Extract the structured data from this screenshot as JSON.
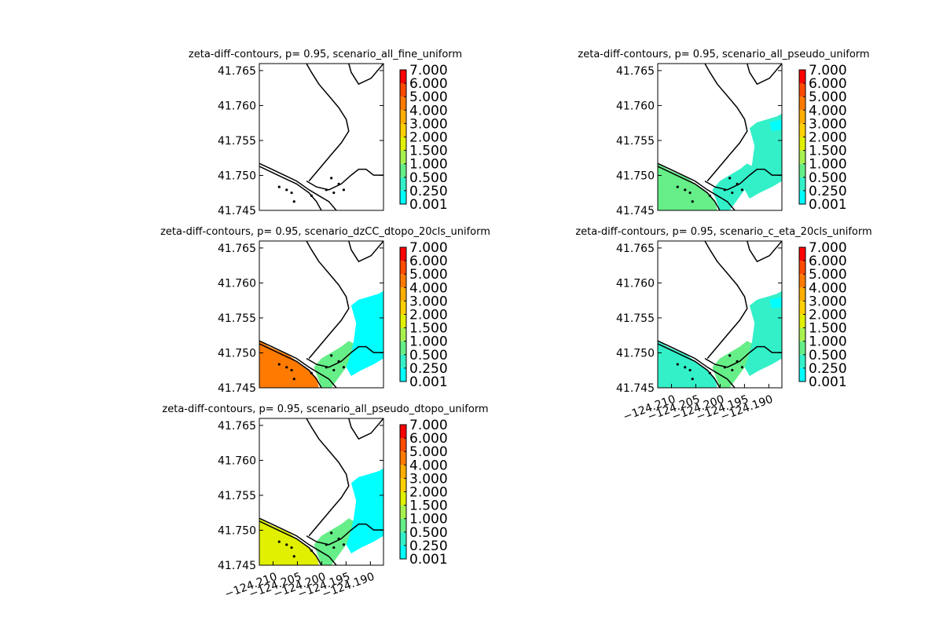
{
  "chart_data": [
    {
      "type": "heatmap",
      "title": "zeta-diff-contours, p= 0.95, scenario_all_fine_uniform",
      "xlabel": "",
      "ylabel": "",
      "ylim": [
        41.745,
        41.766
      ],
      "y_ticks": [
        "41.745",
        "41.750",
        "41.755",
        "41.760",
        "41.765"
      ],
      "x_ticks": [],
      "colorbar_levels": [
        "0.001",
        "0.250",
        "0.500",
        "1.000",
        "1.500",
        "2.000",
        "3.000",
        "4.000",
        "5.000",
        "6.000",
        "7.000"
      ],
      "fill": {
        "nearshore": "none",
        "river": "none",
        "upper": "none"
      }
    },
    {
      "type": "heatmap",
      "title": "zeta-diff-contours, p= 0.95, scenario_all_pseudo_uniform",
      "xlabel": "",
      "ylabel": "",
      "ylim": [
        41.745,
        41.766
      ],
      "y_ticks": [
        "41.745",
        "41.750",
        "41.755",
        "41.760",
        "41.765"
      ],
      "x_ticks": [],
      "colorbar_levels": [
        "0.001",
        "0.250",
        "0.500",
        "1.000",
        "1.500",
        "2.000",
        "3.000",
        "4.000",
        "5.000",
        "6.000",
        "7.000"
      ],
      "fill": {
        "nearshore": "0.500-1.000",
        "river": "0.250-0.500",
        "upper": "0.250-0.500"
      }
    },
    {
      "type": "heatmap",
      "title": "zeta-diff-contours, p= 0.95, scenario_dzCC_dtopo_20cls_uniform",
      "xlabel": "",
      "ylabel": "",
      "ylim": [
        41.745,
        41.766
      ],
      "y_ticks": [
        "41.745",
        "41.750",
        "41.755",
        "41.760",
        "41.765"
      ],
      "x_ticks": [],
      "colorbar_levels": [
        "0.001",
        "0.250",
        "0.500",
        "1.000",
        "1.500",
        "2.000",
        "3.000",
        "4.000",
        "5.000",
        "6.000",
        "7.000"
      ],
      "fill": {
        "nearshore": "4.000-5.000",
        "river": "0.500-1.000",
        "upper": "0.001-0.250"
      }
    },
    {
      "type": "heatmap",
      "title": "zeta-diff-contours, p= 0.95, scenario_c_eta_20cls_uniform",
      "xlabel": "",
      "ylabel": "",
      "ylim": [
        41.745,
        41.766
      ],
      "y_ticks": [
        "41.745",
        "41.750",
        "41.755",
        "41.760",
        "41.765"
      ],
      "x_ticks": [
        "−124.210",
        "−124.205",
        "−124.200",
        "−124.195",
        "−124.190"
      ],
      "colorbar_levels": [
        "0.001",
        "0.250",
        "0.500",
        "1.000",
        "1.500",
        "2.000",
        "3.000",
        "4.000",
        "5.000",
        "6.000",
        "7.000"
      ],
      "fill": {
        "nearshore": "0.250-0.500",
        "river": "0.500-1.000",
        "upper": "0.250-0.500"
      }
    },
    {
      "type": "heatmap",
      "title": "zeta-diff-contours, p= 0.95, scenario_all_pseudo_dtopo_uniform",
      "xlabel": "",
      "ylabel": "",
      "ylim": [
        41.745,
        41.766
      ],
      "y_ticks": [
        "41.745",
        "41.750",
        "41.755",
        "41.760",
        "41.765"
      ],
      "x_ticks": [
        "−124.210",
        "−124.205",
        "−124.200",
        "−124.195",
        "−124.190"
      ],
      "colorbar_levels": [
        "0.001",
        "0.250",
        "0.500",
        "1.000",
        "1.500",
        "2.000",
        "3.000",
        "4.000",
        "5.000",
        "6.000",
        "7.000"
      ],
      "fill": {
        "nearshore": "1.500-2.000",
        "river": "0.500-1.000",
        "upper": "0.001-0.250"
      }
    }
  ],
  "colors": {
    "levels": [
      "#00ffff",
      "#33f0c9",
      "#66ee88",
      "#a8f250",
      "#e0f000",
      "#ffd000",
      "#ffae00",
      "#ff7a00",
      "#ff4a00",
      "#ff0000"
    ],
    "outline": "#000000",
    "background": "#ffffff"
  }
}
